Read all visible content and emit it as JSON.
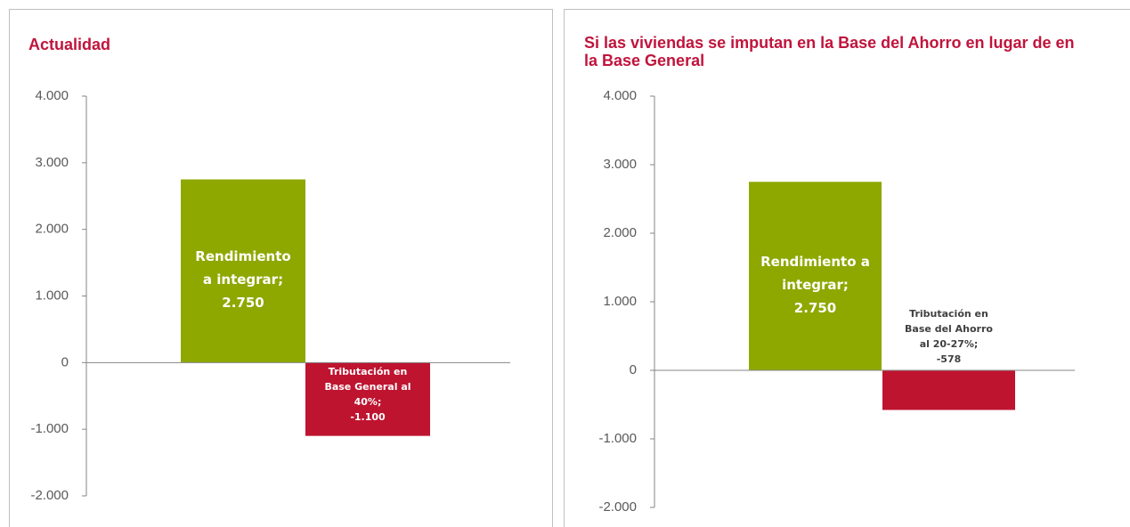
{
  "chart_data": [
    {
      "type": "bar",
      "title": "Actualidad",
      "categories": [
        "Rendimiento a integrar;",
        "Tributación en Base General al 40%;"
      ],
      "values": [
        2750,
        -1100
      ],
      "value_labels": [
        "2.750",
        "-1.100"
      ],
      "colors": [
        "#8ea800",
        "#be1430"
      ],
      "ylim": [
        -2000,
        4000
      ],
      "yticks": [
        {
          "value": -2000,
          "label": "-2.000"
        },
        {
          "value": -1000,
          "label": "-1.000"
        },
        0,
        {
          "value": 1000,
          "label": "1.000"
        },
        {
          "value": 2000,
          "label": "2.000"
        },
        {
          "value": 3000,
          "label": "3.000"
        },
        {
          "value": 4000,
          "label": "4.000"
        }
      ]
    },
    {
      "type": "bar",
      "title": "Si las viviendas se imputan en la Base del Ahorro en lugar de en la Base General",
      "categories": [
        "Rendimiento a integrar;",
        "Tributación en Base del Ahorro al 20-27%;"
      ],
      "values": [
        2750,
        -578
      ],
      "value_labels": [
        "2.750",
        "-578"
      ],
      "colors": [
        "#8ea800",
        "#be1430"
      ],
      "ylim": [
        -2000,
        4000
      ],
      "yticks": [
        {
          "value": -2000,
          "label": "-2.000"
        },
        {
          "value": -1000,
          "label": "-1.000"
        },
        0,
        {
          "value": 1000,
          "label": "1.000"
        },
        {
          "value": 2000,
          "label": "2.000"
        },
        {
          "value": 3000,
          "label": "3.000"
        },
        {
          "value": 4000,
          "label": "4.000"
        }
      ]
    }
  ]
}
